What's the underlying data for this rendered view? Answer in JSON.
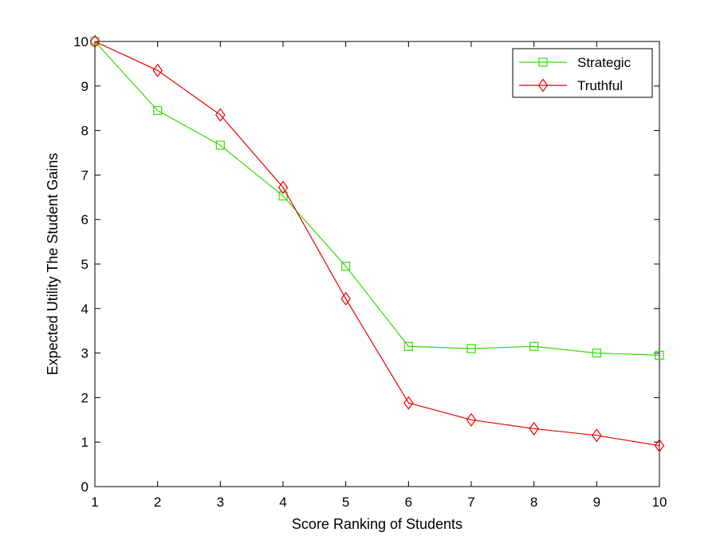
{
  "chart_data": {
    "type": "line",
    "title": "",
    "xlabel": "Score Ranking of Students",
    "ylabel": "Expected Utility The Student Gains",
    "xlim": [
      1,
      10
    ],
    "ylim": [
      0,
      10
    ],
    "xticks": [
      "1",
      "2",
      "3",
      "4",
      "5",
      "6",
      "7",
      "8",
      "9",
      "10"
    ],
    "yticks": [
      "0",
      "1",
      "2",
      "3",
      "4",
      "5",
      "6",
      "7",
      "8",
      "9",
      "10"
    ],
    "grid": false,
    "legend_position": "top-right",
    "x": [
      1,
      2,
      3,
      4,
      5,
      6,
      7,
      8,
      9,
      10
    ],
    "series": [
      {
        "name": "Strategic",
        "color": "#33dd00",
        "marker": "square",
        "values": [
          10,
          8.45,
          7.67,
          6.53,
          4.95,
          3.15,
          3.1,
          3.15,
          3.0,
          2.95
        ]
      },
      {
        "name": "Truthful",
        "color": "#ee0000",
        "marker": "diamond",
        "values": [
          10,
          9.35,
          8.35,
          6.72,
          4.22,
          1.88,
          1.5,
          1.3,
          1.15,
          0.92
        ]
      }
    ]
  }
}
